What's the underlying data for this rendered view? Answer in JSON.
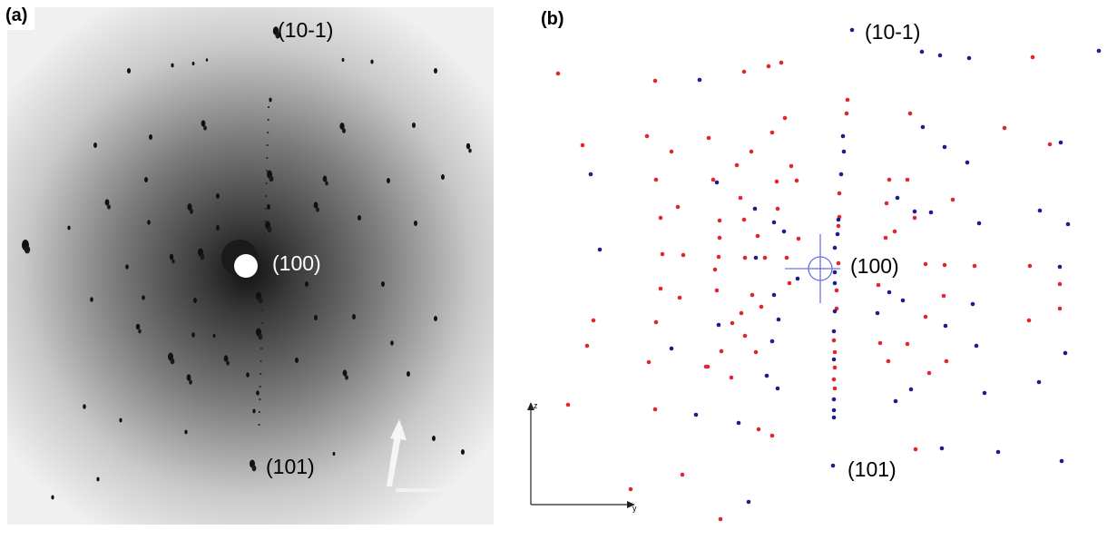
{
  "panel_a": {
    "label": "(a)",
    "annotations": [
      {
        "text": "(10-1)",
        "color": "#000000"
      },
      {
        "text": "(100)",
        "color": "#ffffff"
      },
      {
        "text": "(101)",
        "color": "#000000"
      }
    ]
  },
  "panel_b": {
    "label": "(b)",
    "annotations": [
      "(10-1)",
      "(100)",
      "(101)"
    ],
    "axes": {
      "vertical": "z",
      "horizontal": "y"
    },
    "colors": {
      "red_spots": "#e3262c",
      "blue_spots": "#1c1c8c",
      "center_marker": "#6b72e0"
    }
  }
}
